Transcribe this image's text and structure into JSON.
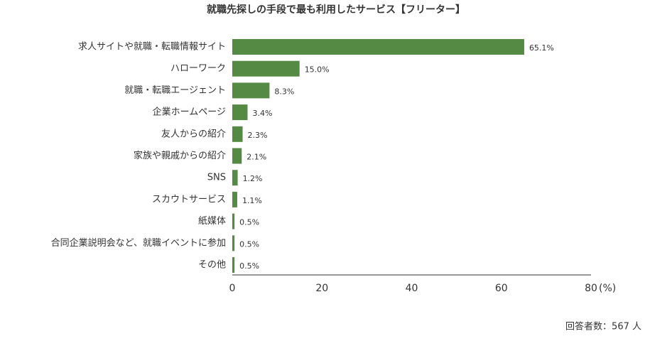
{
  "chart_data": {
    "type": "barh",
    "title": "就職先探しの手段で最も利用したサービス【フリーター】",
    "categories": [
      "求人サイトや就職・転職情報サイト",
      "ハローワーク",
      "就職・転職エージェント",
      "企業ホームページ",
      "友人からの紹介",
      "家族や親戚からの紹介",
      "SNS",
      "スカウトサービス",
      "紙媒体",
      "合同企業説明会など、就職イベントに参加",
      "その他"
    ],
    "values": [
      65.1,
      15.0,
      8.3,
      3.4,
      2.3,
      2.1,
      1.2,
      1.1,
      0.5,
      0.5,
      0.5
    ],
    "value_labels": [
      "65.1%",
      "15.0%",
      "8.3%",
      "3.4%",
      "2.3%",
      "2.1%",
      "1.2%",
      "1.1%",
      "0.5%",
      "0.5%",
      "0.5%"
    ],
    "color": "#548a43",
    "xlim": [
      0,
      80
    ],
    "xticks": [
      0,
      20,
      40,
      60,
      80
    ],
    "x_label": "(%)",
    "note": "回答者数：567 人"
  }
}
